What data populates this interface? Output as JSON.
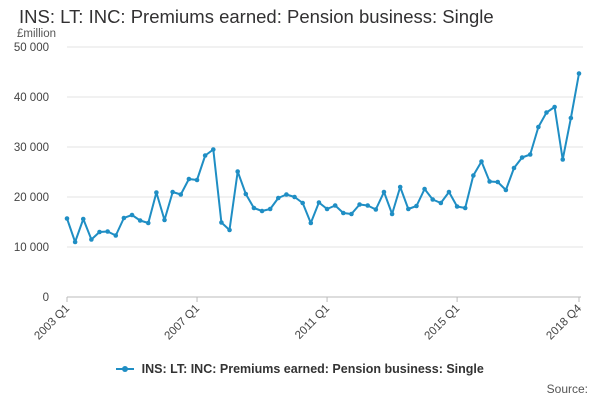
{
  "chart_data": {
    "type": "line",
    "title": "INS: LT: INC: Premiums earned: Pension business: Single",
    "ylabel": "£million",
    "xlabel": "",
    "ylim": [
      0,
      50000
    ],
    "yticks": [
      0,
      10000,
      20000,
      30000,
      40000,
      50000
    ],
    "ytick_labels": [
      "0",
      "10 000",
      "20 000",
      "30 000",
      "40 000",
      "50 000"
    ],
    "xtick_labels": [
      "2003 Q1",
      "2007 Q1",
      "2011 Q1",
      "2015 Q1",
      "2018 Q4"
    ],
    "grid": true,
    "legend_position": "bottom",
    "series": [
      {
        "name": "INS: LT: INC: Premiums earned: Pension business: Single",
        "color": "#1f8ec4",
        "x": [
          "2003 Q1",
          "2003 Q2",
          "2003 Q3",
          "2003 Q4",
          "2004 Q1",
          "2004 Q2",
          "2004 Q3",
          "2004 Q4",
          "2005 Q1",
          "2005 Q2",
          "2005 Q3",
          "2005 Q4",
          "2006 Q1",
          "2006 Q2",
          "2006 Q3",
          "2006 Q4",
          "2007 Q1",
          "2007 Q2",
          "2007 Q3",
          "2007 Q4",
          "2008 Q1",
          "2008 Q2",
          "2008 Q3",
          "2008 Q4",
          "2009 Q1",
          "2009 Q2",
          "2009 Q3",
          "2009 Q4",
          "2010 Q1",
          "2010 Q2",
          "2010 Q3",
          "2010 Q4",
          "2011 Q1",
          "2011 Q2",
          "2011 Q3",
          "2011 Q4",
          "2012 Q1",
          "2012 Q2",
          "2012 Q3",
          "2012 Q4",
          "2013 Q1",
          "2013 Q2",
          "2013 Q3",
          "2013 Q4",
          "2014 Q1",
          "2014 Q2",
          "2014 Q3",
          "2014 Q4",
          "2015 Q1",
          "2015 Q2",
          "2015 Q3",
          "2015 Q4",
          "2016 Q1",
          "2016 Q2",
          "2016 Q3",
          "2016 Q4",
          "2017 Q1",
          "2017 Q2",
          "2017 Q3",
          "2017 Q4",
          "2018 Q1",
          "2018 Q2",
          "2018 Q3",
          "2018 Q4"
        ],
        "values": [
          15700,
          11000,
          15600,
          11500,
          13000,
          13100,
          12300,
          15800,
          16400,
          15300,
          14800,
          20900,
          15400,
          21000,
          20500,
          23600,
          23400,
          28300,
          29500,
          14900,
          13400,
          25100,
          20600,
          17800,
          17200,
          17600,
          19800,
          20500,
          20000,
          18800,
          14800,
          18900,
          17600,
          18300,
          16800,
          16600,
          18500,
          18300,
          17500,
          21000,
          16600,
          22000,
          17600,
          18200,
          21600,
          19500,
          18800,
          21000,
          18100,
          17800,
          24300,
          27100,
          23100,
          23000,
          21400,
          25800,
          27900,
          28500,
          34000,
          36900,
          38000,
          27500,
          35800,
          44700
        ]
      }
    ]
  },
  "legend": {
    "label": "INS: LT: INC: Premiums earned: Pension business: Single"
  },
  "source_label": "Source:"
}
